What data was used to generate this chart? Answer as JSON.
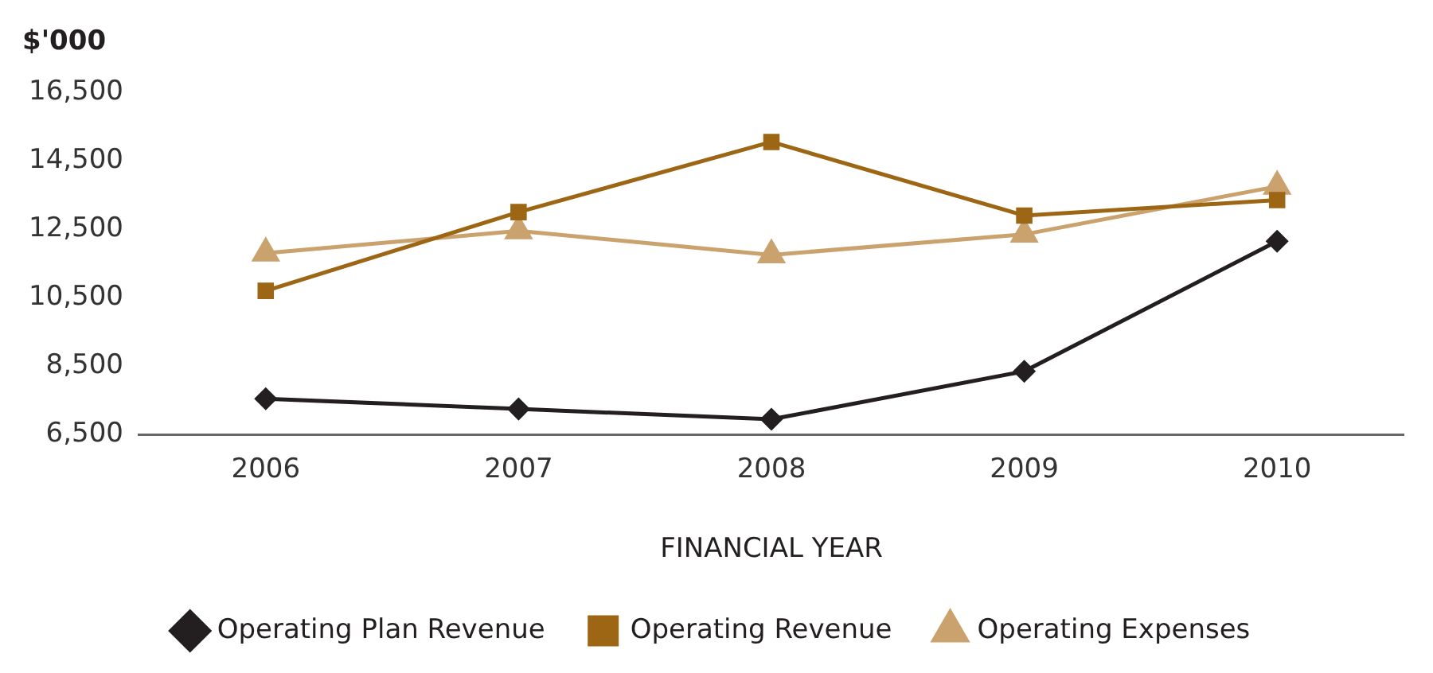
{
  "chart_data": {
    "type": "line",
    "ylabel": "$'000",
    "xlabel": "FINANCIAL YEAR",
    "categories": [
      "2006",
      "2007",
      "2008",
      "2009",
      "2010"
    ],
    "series": [
      {
        "name": "Operating Plan Revenue",
        "color": "#231f20",
        "marker": "diamond",
        "values": [
          7550,
          7250,
          6950,
          8350,
          12150
        ]
      },
      {
        "name": "Operating Revenue",
        "color": "#9c6615",
        "marker": "square",
        "values": [
          10700,
          13000,
          15050,
          12900,
          13350
        ]
      },
      {
        "name": "Operating Expenses",
        "color": "#c9a26e",
        "marker": "triangle",
        "values": [
          11800,
          12450,
          11750,
          12350,
          13750
        ]
      }
    ],
    "ylim": [
      6500,
      16500
    ],
    "yticks": [
      {
        "value": 6500,
        "label": "6,500"
      },
      {
        "value": 8500,
        "label": "8,500"
      },
      {
        "value": 10500,
        "label": "10,500"
      },
      {
        "value": 12500,
        "label": "12,500"
      },
      {
        "value": 14500,
        "label": "14,500"
      },
      {
        "value": 16500,
        "label": "16,500"
      }
    ],
    "grid": false,
    "legend": "bottom",
    "line_style": "solid"
  }
}
